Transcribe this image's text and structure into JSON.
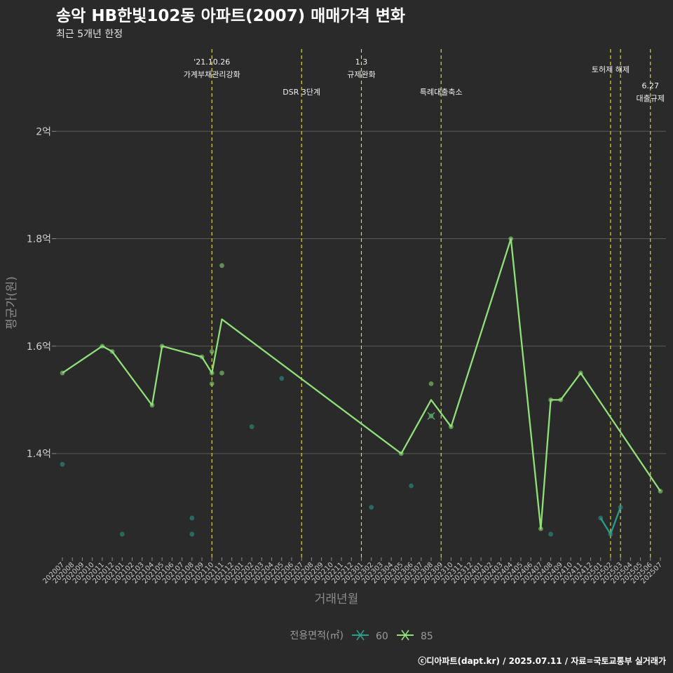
{
  "chart_data": {
    "type": "line",
    "title": "송악 HB한빛102동 아파트(2007) 매매가격 변화",
    "subtitle": "최근 5개년 한정",
    "xlabel": "거래년월",
    "ylabel": "평균가(원)",
    "y_unit": "억",
    "ylim": [
      1.18,
      2.18
    ],
    "yticks": [
      {
        "value": 1.4,
        "label": "1.4억"
      },
      {
        "value": 1.6,
        "label": "1.6억"
      },
      {
        "value": 1.8,
        "label": "1.8억"
      },
      {
        "value": 2.0,
        "label": "2억"
      }
    ],
    "grid": true,
    "x_months": [
      "202007",
      "202008",
      "202009",
      "202010",
      "202011",
      "202012",
      "202101",
      "202102",
      "202103",
      "202104",
      "202105",
      "202106",
      "202107",
      "202108",
      "202109",
      "202110",
      "202111",
      "202112",
      "202201",
      "202202",
      "202203",
      "202204",
      "202205",
      "202206",
      "202207",
      "202208",
      "202209",
      "202210",
      "202211",
      "202212",
      "202301",
      "202302",
      "202303",
      "202304",
      "202305",
      "202306",
      "202307",
      "202308",
      "202309",
      "202310",
      "202311",
      "202312",
      "202401",
      "202402",
      "202403",
      "202404",
      "202405",
      "202406",
      "202407",
      "202408",
      "202409",
      "202410",
      "202411",
      "202412",
      "202501",
      "202502",
      "202503",
      "202504",
      "202505",
      "202506",
      "202507"
    ],
    "events": [
      {
        "x": 15.0,
        "lines": [
          "'21.10.26",
          "가계부채관리강화"
        ],
        "row": 0
      },
      {
        "x": 24.0,
        "lines": [
          "DSR 3단계"
        ],
        "row": 1
      },
      {
        "x": 30.0,
        "lines": [
          "1.3",
          "규제완화"
        ],
        "row": 0
      },
      {
        "x": 38.0,
        "lines": [
          "특례대출축소"
        ],
        "row": 1
      },
      {
        "x": 55.0,
        "lines": [
          "토허제 해제"
        ],
        "row": 0
      },
      {
        "x": 56.0,
        "lines": [],
        "row": 0
      },
      {
        "x": 59.0,
        "lines": [
          "6.27",
          "대출규제"
        ],
        "row": 2
      }
    ],
    "series": [
      {
        "name": "60",
        "color": "#2a9d8f",
        "line": [
          {
            "x": 54,
            "y": 1.28
          },
          {
            "x": 55,
            "y": 1.25
          },
          {
            "x": 56,
            "y": 1.3
          }
        ],
        "points": [
          {
            "x": 0,
            "y": 1.38
          },
          {
            "x": 6,
            "y": 1.25
          },
          {
            "x": 13,
            "y": 1.28
          },
          {
            "x": 13,
            "y": 1.25
          },
          {
            "x": 19,
            "y": 1.45
          },
          {
            "x": 22,
            "y": 1.54
          },
          {
            "x": 31,
            "y": 1.3
          },
          {
            "x": 35,
            "y": 1.34
          },
          {
            "x": 49,
            "y": 1.25
          },
          {
            "x": 54,
            "y": 1.28
          },
          {
            "x": 55,
            "y": 1.25
          },
          {
            "x": 56,
            "y": 1.3
          }
        ]
      },
      {
        "name": "85",
        "color": "#90e07a",
        "line": [
          {
            "x": 0,
            "y": 1.55
          },
          {
            "x": 4,
            "y": 1.6
          },
          {
            "x": 5,
            "y": 1.59
          },
          {
            "x": 9,
            "y": 1.49
          },
          {
            "x": 10,
            "y": 1.6
          },
          {
            "x": 14,
            "y": 1.58
          },
          {
            "x": 15,
            "y": 1.55
          },
          {
            "x": 16,
            "y": 1.65
          },
          {
            "x": 34,
            "y": 1.4
          },
          {
            "x": 37,
            "y": 1.5
          },
          {
            "x": 39,
            "y": 1.45
          },
          {
            "x": 45,
            "y": 1.8
          },
          {
            "x": 48,
            "y": 1.26
          },
          {
            "x": 49,
            "y": 1.5
          },
          {
            "x": 50,
            "y": 1.5
          },
          {
            "x": 52,
            "y": 1.55
          },
          {
            "x": 60,
            "y": 1.33
          }
        ],
        "points": [
          {
            "x": 0,
            "y": 1.55
          },
          {
            "x": 4,
            "y": 1.6
          },
          {
            "x": 5,
            "y": 1.59
          },
          {
            "x": 9,
            "y": 1.49
          },
          {
            "x": 10,
            "y": 1.6
          },
          {
            "x": 14,
            "y": 1.58
          },
          {
            "x": 15,
            "y": 1.59
          },
          {
            "x": 15,
            "y": 1.55
          },
          {
            "x": 15,
            "y": 1.53
          },
          {
            "x": 16,
            "y": 1.75
          },
          {
            "x": 16,
            "y": 1.55
          },
          {
            "x": 34,
            "y": 1.4
          },
          {
            "x": 37,
            "y": 1.53
          },
          {
            "x": 37,
            "y": 1.47
          },
          {
            "x": 39,
            "y": 1.45
          },
          {
            "x": 45,
            "y": 1.8
          },
          {
            "x": 48,
            "y": 1.26
          },
          {
            "x": 49,
            "y": 1.5
          },
          {
            "x": 50,
            "y": 1.5
          },
          {
            "x": 52,
            "y": 1.55
          },
          {
            "x": 60,
            "y": 1.33
          }
        ]
      }
    ],
    "legend": {
      "title": "전용면적(㎡)",
      "placement": "bottom"
    },
    "caption": "ⓒ디아파트(dapt.kr) / 2025.07.11 / 자료=국토교통부 실거래가"
  }
}
